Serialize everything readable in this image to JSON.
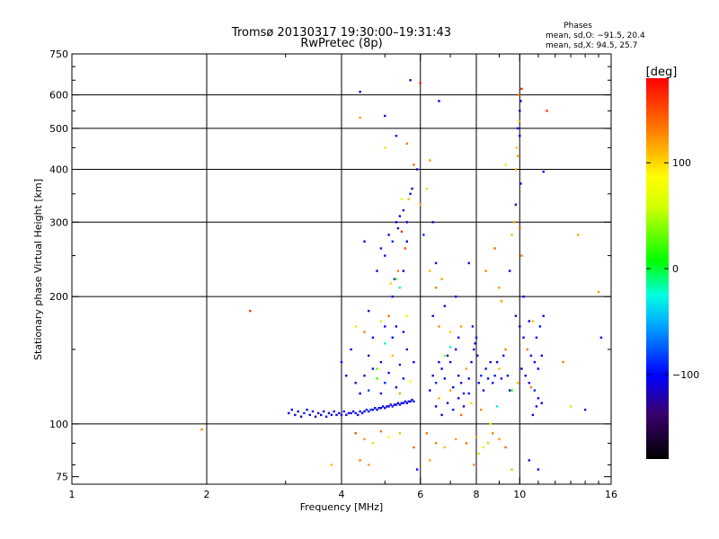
{
  "chart_data": {
    "type": "scatter",
    "title": "Tromsø 20130317 19:30:00–19:31:43",
    "subtitle": "RwPretec (8p)",
    "xlabel": "Frequency [MHz]",
    "ylabel": "Stationary phase Virtual Height [km]",
    "x_scale": "log",
    "y_scale": "log",
    "xlim": [
      1,
      16
    ],
    "ylim": [
      72,
      750
    ],
    "x_ticks": [
      1,
      2,
      4,
      6,
      8,
      10,
      16
    ],
    "y_ticks": [
      75,
      100,
      200,
      300,
      400,
      500,
      600,
      750
    ],
    "x_gridlines": [
      2,
      4,
      6,
      8,
      10
    ],
    "y_gridlines": [
      100,
      200,
      300,
      400,
      500,
      600
    ],
    "stats": {
      "header": "Phases",
      "line1": "mean, sd,O: −91.5, 20.4",
      "line2": "mean, sd,X:  94.5, 25.7"
    },
    "colorbar": {
      "label": "[deg]",
      "range": [
        -180,
        180
      ],
      "ticks": [
        100,
        0,
        -100
      ],
      "tick_labels": [
        "100",
        "0",
        "−100"
      ]
    },
    "series_note": "",
    "points": [
      [
        3.05,
        106,
        -110
      ],
      [
        3.1,
        108,
        -100
      ],
      [
        3.15,
        105,
        -115
      ],
      [
        3.2,
        107,
        -105
      ],
      [
        3.25,
        104,
        -120
      ],
      [
        3.3,
        106,
        -90
      ],
      [
        3.35,
        108,
        -100
      ],
      [
        3.4,
        105,
        -110
      ],
      [
        3.45,
        107,
        -95
      ],
      [
        3.5,
        104,
        -105
      ],
      [
        3.55,
        106,
        -130
      ],
      [
        3.6,
        105,
        -100
      ],
      [
        3.65,
        107,
        -110
      ],
      [
        3.7,
        104,
        -95
      ],
      [
        3.75,
        106,
        -115
      ],
      [
        3.8,
        105,
        -100
      ],
      [
        3.85,
        107,
        -105
      ],
      [
        3.9,
        105,
        -110
      ],
      [
        3.95,
        106,
        -100
      ],
      [
        4.0,
        105,
        -115
      ],
      [
        4.05,
        107,
        -95
      ],
      [
        4.1,
        105,
        -110
      ],
      [
        4.15,
        106,
        -100
      ],
      [
        4.2,
        106,
        -120
      ],
      [
        4.25,
        107,
        -105
      ],
      [
        4.3,
        106,
        -100
      ],
      [
        4.35,
        105,
        -110
      ],
      [
        4.4,
        107,
        -95
      ],
      [
        4.45,
        106,
        -105
      ],
      [
        4.5,
        107,
        -115
      ],
      [
        4.55,
        108,
        -100
      ],
      [
        4.6,
        107,
        -110
      ],
      [
        4.65,
        108,
        -90
      ],
      [
        4.7,
        108,
        -105
      ],
      [
        4.75,
        109,
        -100
      ],
      [
        4.8,
        108,
        -115
      ],
      [
        4.85,
        109,
        -95
      ],
      [
        4.9,
        109,
        -110
      ],
      [
        4.95,
        110,
        -100
      ],
      [
        5.0,
        109,
        -120
      ],
      [
        5.05,
        110,
        -105
      ],
      [
        5.1,
        110,
        -100
      ],
      [
        5.15,
        111,
        -110
      ],
      [
        5.2,
        110,
        -95
      ],
      [
        5.25,
        111,
        -105
      ],
      [
        5.3,
        111,
        -100
      ],
      [
        5.35,
        112,
        -115
      ],
      [
        5.4,
        111,
        -100
      ],
      [
        5.45,
        112,
        -110
      ],
      [
        5.5,
        112,
        -95
      ],
      [
        5.55,
        113,
        -105
      ],
      [
        5.6,
        112,
        -100
      ],
      [
        5.65,
        113,
        -110
      ],
      [
        5.7,
        113,
        -100
      ],
      [
        5.75,
        114,
        -105
      ],
      [
        5.8,
        113,
        -95
      ],
      [
        4.3,
        125,
        -100
      ],
      [
        4.5,
        130,
        -120
      ],
      [
        4.6,
        120,
        -80
      ],
      [
        4.7,
        135,
        -100
      ],
      [
        4.8,
        128,
        20
      ],
      [
        4.9,
        140,
        -110
      ],
      [
        5.0,
        125,
        -90
      ],
      [
        5.1,
        132,
        -100
      ],
      [
        5.2,
        145,
        110
      ],
      [
        5.3,
        122,
        -105
      ],
      [
        5.4,
        138,
        -95
      ],
      [
        5.5,
        128,
        -100
      ],
      [
        5.6,
        150,
        -110
      ],
      [
        5.7,
        126,
        80
      ],
      [
        5.8,
        140,
        -100
      ],
      [
        4.4,
        118,
        -100
      ],
      [
        4.6,
        145,
        -115
      ],
      [
        4.9,
        118,
        -95
      ],
      [
        5.2,
        160,
        -100
      ],
      [
        5.4,
        118,
        120
      ],
      [
        4.2,
        150,
        -100
      ],
      [
        4.1,
        130,
        -105
      ],
      [
        4.0,
        140,
        -100
      ],
      [
        5.0,
        170,
        -100
      ],
      [
        5.1,
        180,
        140
      ],
      [
        4.7,
        160,
        -100
      ],
      [
        4.9,
        175,
        60
      ],
      [
        5.3,
        170,
        -110
      ],
      [
        5.5,
        165,
        -100
      ],
      [
        4.5,
        165,
        130
      ],
      [
        4.3,
        170,
        100
      ],
      [
        4.6,
        185,
        -100
      ],
      [
        5.6,
        180,
        90
      ],
      [
        4.3,
        95,
        150
      ],
      [
        4.5,
        92,
        120
      ],
      [
        4.7,
        90,
        100
      ],
      [
        4.9,
        96,
        130
      ],
      [
        5.1,
        93,
        80
      ],
      [
        5.4,
        95,
        110
      ],
      [
        5.8,
        88,
        140
      ],
      [
        4.4,
        82,
        130
      ],
      [
        4.6,
        80,
        120
      ],
      [
        3.8,
        80,
        110
      ],
      [
        5.0,
        250,
        -100
      ],
      [
        5.1,
        280,
        -110
      ],
      [
        5.2,
        270,
        -90
      ],
      [
        5.3,
        300,
        -100
      ],
      [
        5.35,
        290,
        -120
      ],
      [
        5.4,
        310,
        -100
      ],
      [
        5.45,
        285,
        160
      ],
      [
        5.5,
        320,
        -105
      ],
      [
        5.55,
        260,
        150
      ],
      [
        5.6,
        300,
        -100
      ],
      [
        5.65,
        340,
        110
      ],
      [
        5.7,
        350,
        -95
      ],
      [
        5.5,
        230,
        -100
      ],
      [
        5.35,
        230,
        130
      ],
      [
        5.25,
        220,
        -90
      ],
      [
        5.6,
        270,
        -110
      ],
      [
        5.45,
        340,
        60
      ],
      [
        5.2,
        200,
        -100
      ],
      [
        5.15,
        215,
        100
      ],
      [
        5.75,
        360,
        -110
      ],
      [
        5.8,
        410,
        140
      ],
      [
        5.9,
        400,
        -100
      ],
      [
        4.5,
        270,
        -100
      ],
      [
        4.8,
        230,
        -110
      ],
      [
        4.9,
        260,
        -95
      ],
      [
        5.6,
        460,
        130
      ],
      [
        5.0,
        450,
        100
      ],
      [
        5.3,
        480,
        -100
      ],
      [
        4.4,
        530,
        120
      ],
      [
        5.0,
        535,
        -100
      ],
      [
        5.7,
        650,
        -110
      ],
      [
        6.0,
        640,
        170
      ],
      [
        6.6,
        580,
        -100
      ],
      [
        4.4,
        610,
        -120
      ],
      [
        6.2,
        360,
        100
      ],
      [
        6.4,
        300,
        -100
      ],
      [
        6.3,
        420,
        120
      ],
      [
        6.0,
        330,
        110
      ],
      [
        6.1,
        280,
        -90
      ],
      [
        6.3,
        120,
        -100
      ],
      [
        6.4,
        130,
        -110
      ],
      [
        6.5,
        125,
        -90
      ],
      [
        6.6,
        140,
        -100
      ],
      [
        6.7,
        135,
        -105
      ],
      [
        6.8,
        128,
        -100
      ],
      [
        6.9,
        145,
        -110
      ],
      [
        7.0,
        140,
        -95
      ],
      [
        7.1,
        122,
        -100
      ],
      [
        7.2,
        150,
        -105
      ],
      [
        7.3,
        130,
        -110
      ],
      [
        7.4,
        125,
        -100
      ],
      [
        7.5,
        118,
        -95
      ],
      [
        7.6,
        135,
        120
      ],
      [
        7.7,
        128,
        -100
      ],
      [
        7.8,
        140,
        -110
      ],
      [
        7.9,
        150,
        -100
      ],
      [
        8.0,
        160,
        -105
      ],
      [
        7.85,
        170,
        -95
      ],
      [
        7.95,
        155,
        -100
      ],
      [
        8.05,
        145,
        -110
      ],
      [
        8.1,
        125,
        -100
      ],
      [
        8.2,
        130,
        -90
      ],
      [
        8.3,
        120,
        -100
      ],
      [
        8.4,
        135,
        -105
      ],
      [
        8.5,
        128,
        -100
      ],
      [
        8.6,
        140,
        -110
      ],
      [
        8.7,
        125,
        -100
      ],
      [
        8.8,
        130,
        -95
      ],
      [
        8.9,
        140,
        -100
      ],
      [
        9.0,
        135,
        110
      ],
      [
        9.1,
        128,
        -100
      ],
      [
        9.2,
        145,
        -105
      ],
      [
        9.3,
        150,
        130
      ],
      [
        9.4,
        130,
        -110
      ],
      [
        9.5,
        120,
        -100
      ],
      [
        6.5,
        110,
        -100
      ],
      [
        6.7,
        105,
        -110
      ],
      [
        6.9,
        112,
        -100
      ],
      [
        7.1,
        108,
        -95
      ],
      [
        7.3,
        115,
        -100
      ],
      [
        7.5,
        110,
        -120
      ],
      [
        7.7,
        118,
        -100
      ],
      [
        6.6,
        115,
        110
      ],
      [
        7.0,
        120,
        120
      ],
      [
        7.4,
        105,
        140
      ],
      [
        7.8,
        112,
        100
      ],
      [
        8.2,
        108,
        130
      ],
      [
        6.4,
        180,
        -100
      ],
      [
        6.6,
        170,
        120
      ],
      [
        6.8,
        190,
        -110
      ],
      [
        7.0,
        165,
        100
      ],
      [
        7.2,
        200,
        -100
      ],
      [
        6.5,
        210,
        130
      ],
      [
        6.7,
        220,
        120
      ],
      [
        6.3,
        230,
        110
      ],
      [
        6.5,
        240,
        -100
      ],
      [
        6.2,
        95,
        140
      ],
      [
        6.5,
        90,
        130
      ],
      [
        6.8,
        88,
        110
      ],
      [
        7.2,
        92,
        120
      ],
      [
        7.6,
        90,
        140
      ],
      [
        8.0,
        93,
        120
      ],
      [
        8.3,
        88,
        60
      ],
      [
        8.5,
        90,
        40
      ],
      [
        8.7,
        95,
        130
      ],
      [
        9.0,
        92,
        120
      ],
      [
        9.3,
        88,
        140
      ],
      [
        8.1,
        85,
        50
      ],
      [
        5.9,
        78,
        -100
      ],
      [
        6.3,
        82,
        120
      ],
      [
        7.9,
        80,
        130
      ],
      [
        9.6,
        78,
        110
      ],
      [
        10.5,
        82,
        -100
      ],
      [
        11.0,
        78,
        -110
      ],
      [
        9.8,
        180,
        -100
      ],
      [
        10.0,
        170,
        -110
      ],
      [
        10.2,
        160,
        -100
      ],
      [
        10.4,
        150,
        130
      ],
      [
        10.6,
        145,
        -100
      ],
      [
        10.8,
        140,
        -105
      ],
      [
        11.0,
        135,
        -100
      ],
      [
        11.2,
        145,
        -110
      ],
      [
        10.9,
        160,
        -100
      ],
      [
        11.1,
        170,
        -95
      ],
      [
        10.7,
        175,
        110
      ],
      [
        11.3,
        180,
        -100
      ],
      [
        10.3,
        130,
        -110
      ],
      [
        10.5,
        125,
        -100
      ],
      [
        10.8,
        120,
        -90
      ],
      [
        11.0,
        115,
        -100
      ],
      [
        11.2,
        112,
        -110
      ],
      [
        10.9,
        110,
        -100
      ],
      [
        10.6,
        122,
        130
      ],
      [
        10.1,
        135,
        -100
      ],
      [
        9.9,
        125,
        110
      ],
      [
        10.7,
        105,
        -100
      ],
      [
        9.8,
        400,
        120
      ],
      [
        9.85,
        450,
        110
      ],
      [
        9.9,
        500,
        -100
      ],
      [
        9.95,
        520,
        100
      ],
      [
        10.0,
        550,
        -110
      ],
      [
        10.05,
        580,
        -100
      ],
      [
        10.1,
        620,
        170
      ],
      [
        9.95,
        600,
        130
      ],
      [
        10.0,
        480,
        -100
      ],
      [
        9.9,
        430,
        120
      ],
      [
        10.05,
        370,
        -100
      ],
      [
        9.8,
        330,
        -110
      ],
      [
        9.7,
        300,
        120
      ],
      [
        9.6,
        280,
        110
      ],
      [
        10.0,
        290,
        140
      ],
      [
        10.1,
        250,
        130
      ],
      [
        9.5,
        230,
        -100
      ],
      [
        9.3,
        410,
        100
      ],
      [
        11.5,
        550,
        160
      ],
      [
        11.3,
        395,
        -100
      ],
      [
        13.5,
        280,
        120
      ],
      [
        15.0,
        205,
        120
      ],
      [
        15.2,
        160,
        -100
      ],
      [
        14.0,
        108,
        -100
      ],
      [
        13.0,
        110,
        100
      ],
      [
        12.5,
        140,
        130
      ],
      [
        10.2,
        200,
        -100
      ],
      [
        10.5,
        175,
        -110
      ],
      [
        2.5,
        185,
        160
      ],
      [
        1.95,
        97,
        130
      ],
      [
        7.3,
        160,
        -100
      ],
      [
        7.4,
        170,
        120
      ],
      [
        8.8,
        260,
        140
      ],
      [
        9.0,
        210,
        120
      ],
      [
        7.7,
        240,
        -100
      ],
      [
        8.4,
        230,
        130
      ],
      [
        9.1,
        195,
        120
      ],
      [
        6.8,
        145,
        40
      ],
      [
        7.0,
        152,
        -20
      ],
      [
        5.0,
        155,
        -20
      ],
      [
        5.4,
        210,
        -20
      ],
      [
        5.3,
        220,
        30
      ],
      [
        8.6,
        100,
        60
      ],
      [
        8.9,
        110,
        -30
      ],
      [
        9.6,
        120,
        10
      ],
      [
        4.8,
        135,
        30
      ]
    ]
  }
}
